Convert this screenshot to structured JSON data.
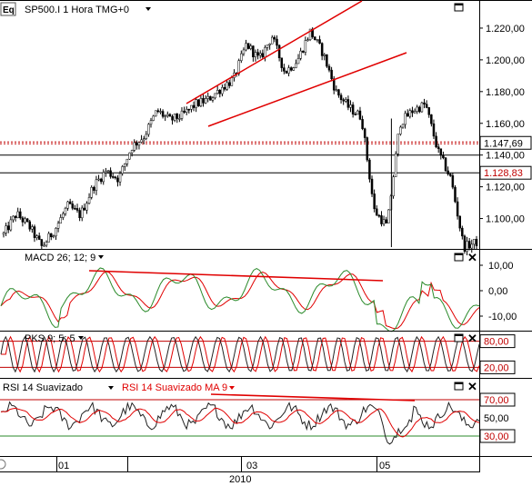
{
  "main_panel": {
    "logo_text": "Eq",
    "title": "SP500.I 1 Hora TMG+0",
    "y_ticks": [
      "1.220,00",
      "1.200,00",
      "1.180,00",
      "1.160,00",
      "1.140,00",
      "1.120,00",
      "1.100,00"
    ],
    "y_tick_values": [
      1220,
      1200,
      1180,
      1160,
      1140,
      1120,
      1100
    ],
    "ylim": [
      1082,
      1236
    ],
    "price_labels": [
      {
        "text": "1.147,69",
        "value": 1147.69,
        "color": "#000000",
        "line_color": "#c00000",
        "dashed": true
      },
      {
        "text": "1.128,83",
        "value": 1128.83,
        "color": "#c00000",
        "line_color": "#000000",
        "dashed": false
      }
    ],
    "hline_extra_value": 1140,
    "trend_color": "#e00000"
  },
  "macd_panel": {
    "title": "MACD 26; 12; 9",
    "y_ticks": [
      "10,00",
      "0,00",
      "-10,00"
    ],
    "y_tick_values": [
      10,
      0,
      -10
    ],
    "ylim": [
      -15,
      15
    ]
  },
  "pks_panel": {
    "title": "PKS 9; 5; 5",
    "levels": [
      "80,00",
      "20,00"
    ],
    "level_values": [
      80,
      20
    ],
    "ylim": [
      0,
      100
    ]
  },
  "rsi_panel": {
    "title_a": "RSI 14 Suavizado",
    "title_b": "RSI 14 Suavizado MA 9",
    "levels": [
      "70,00",
      "50,00",
      "30,00"
    ],
    "level_values": [
      70,
      50,
      30
    ],
    "ylim": [
      10,
      90
    ]
  },
  "x_axis": {
    "labels": [
      "01",
      "03",
      "05"
    ],
    "year": "2010"
  },
  "chart_data": [
    {
      "type": "candlestick",
      "title": "SP500.I 1 Hora TMG+0",
      "x_ticks": [
        "01",
        "03",
        "05"
      ],
      "x_year": "2010",
      "y_ticks": [
        "1.220,00",
        "1.200,00",
        "1.180,00",
        "1.160,00",
        "1.140,00",
        "1.120,00",
        "1.100,00"
      ],
      "ylim": [
        1082,
        1236
      ],
      "series": [
        {
          "values": [
            1090,
            1103,
            1095,
            1082,
            1093,
            1108,
            1102,
            1120,
            1130,
            1125,
            1145,
            1152,
            1168,
            1162,
            1165,
            1172,
            1175,
            1182,
            1188,
            1210,
            1200,
            1215,
            1192,
            1200,
            1218,
            1204,
            1180,
            1170,
            1164,
            1105,
            1095,
            1160,
            1168,
            1172,
            1142,
            1125,
            1082,
            1085
          ]
        }
      ],
      "horizontal_levels": [
        1147.69,
        1140,
        1128.83
      ]
    },
    {
      "type": "line",
      "title": "MACD 26; 12; 9",
      "y_ticks": [
        "10,00",
        "0,00",
        "-10,00"
      ],
      "ylim": [
        -15,
        15
      ]
    },
    {
      "type": "line",
      "title": "PKS 9; 5; 5",
      "levels": [
        "80,00",
        "20,00"
      ],
      "ylim": [
        0,
        100
      ]
    },
    {
      "type": "line",
      "title": "RSI 14 Suavizado",
      "legend": [
        "RSI 14 Suavizado",
        "RSI 14 Suavizado MA 9"
      ],
      "levels": [
        "70,00",
        "50,00",
        "30,00"
      ],
      "ylim": [
        10,
        90
      ]
    }
  ]
}
